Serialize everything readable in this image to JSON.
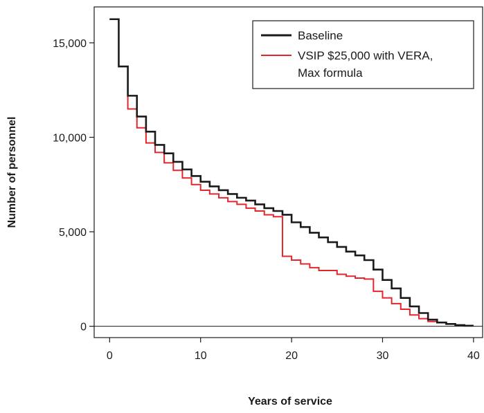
{
  "chart_data": {
    "type": "line",
    "step": true,
    "xlabel": "Years of service",
    "ylabel": "Number of personnel",
    "xlim": [
      -1.7,
      41
    ],
    "ylim": [
      -600,
      16900
    ],
    "xticks": [
      0,
      10,
      20,
      30,
      40
    ],
    "yticks": [
      0,
      5000,
      10000,
      15000
    ],
    "xtick_labels": [
      "0",
      "10",
      "20",
      "30",
      "40"
    ],
    "ytick_labels": [
      "0",
      "5,000",
      "10,000",
      "15,000"
    ],
    "grid": false,
    "zero_line": true,
    "legend_position": "top-right",
    "x": [
      0,
      1,
      2,
      3,
      4,
      5,
      6,
      7,
      8,
      9,
      10,
      11,
      12,
      13,
      14,
      15,
      16,
      17,
      18,
      19,
      20,
      21,
      22,
      23,
      24,
      25,
      26,
      27,
      28,
      29,
      30,
      31,
      32,
      33,
      34,
      35,
      36,
      37,
      38,
      39
    ],
    "series": [
      {
        "name": "Baseline",
        "color": "#1a1a1a",
        "values": [
          16250,
          13750,
          12200,
          11100,
          10300,
          9600,
          9150,
          8700,
          8300,
          7950,
          7650,
          7400,
          7200,
          7000,
          6800,
          6650,
          6450,
          6250,
          6100,
          5900,
          5500,
          5250,
          4950,
          4700,
          4450,
          4200,
          3950,
          3750,
          3500,
          3000,
          2450,
          2000,
          1500,
          1050,
          700,
          350,
          200,
          120,
          60,
          30
        ]
      },
      {
        "name": "VSIP $25,000 with VERA, Max formula",
        "legend_lines": [
          "VSIP $25,000 with VERA,",
          "Max formula"
        ],
        "color": "#e3262b",
        "values": [
          16250,
          13750,
          11500,
          10500,
          9700,
          9200,
          8650,
          8250,
          7850,
          7500,
          7200,
          7000,
          6800,
          6600,
          6450,
          6250,
          6100,
          5900,
          5800,
          3700,
          3500,
          3300,
          3100,
          2950,
          2950,
          2750,
          2650,
          2550,
          2500,
          1850,
          1500,
          1200,
          900,
          600,
          400,
          250,
          200,
          120,
          60,
          30
        ]
      }
    ]
  }
}
